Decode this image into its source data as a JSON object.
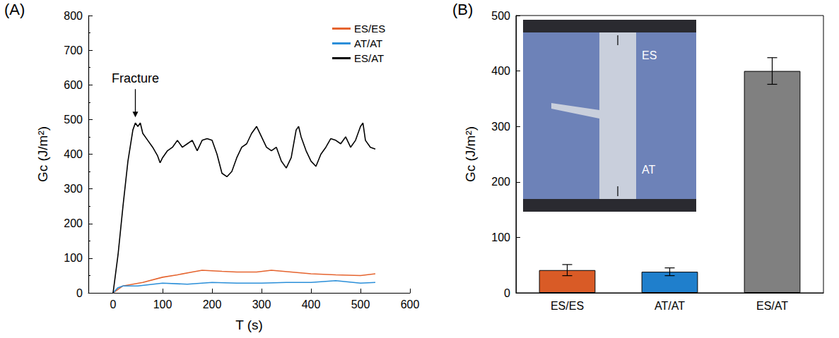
{
  "chart_data": [
    {
      "type": "line",
      "panel": "(A)",
      "x_label": "T (s)",
      "y_label": "Gc (J/m²)",
      "xlim": [
        -50,
        600
      ],
      "xticks": [
        0,
        100,
        200,
        300,
        400,
        500,
        600
      ],
      "ylim": [
        0,
        800
      ],
      "yticks": [
        0,
        100,
        200,
        300,
        400,
        500,
        600,
        700,
        800
      ],
      "grid": false,
      "legend": "upper right",
      "annotations": [
        {
          "text": "Fracture",
          "x": 45,
          "y": 490
        }
      ],
      "series": [
        {
          "name": "ES/ES",
          "color": "#e5642f",
          "x": [
            0,
            20,
            60,
            100,
            130,
            160,
            180,
            220,
            250,
            290,
            320,
            360,
            400,
            450,
            500,
            530
          ],
          "values": [
            0,
            20,
            30,
            45,
            52,
            60,
            65,
            62,
            60,
            60,
            65,
            60,
            55,
            52,
            50,
            55
          ]
        },
        {
          "name": "AT/AT",
          "color": "#2b8fd9",
          "x": [
            0,
            10,
            20,
            50,
            100,
            150,
            200,
            250,
            300,
            350,
            400,
            450,
            500,
            530
          ],
          "values": [
            0,
            15,
            20,
            20,
            28,
            25,
            30,
            28,
            28,
            30,
            30,
            35,
            28,
            30
          ]
        },
        {
          "name": "ES/AT",
          "color": "#000000",
          "x": [
            0,
            10,
            20,
            30,
            40,
            45,
            50,
            55,
            60,
            70,
            80,
            90,
            95,
            100,
            110,
            120,
            130,
            140,
            150,
            160,
            170,
            180,
            190,
            200,
            210,
            220,
            230,
            240,
            250,
            260,
            270,
            280,
            290,
            300,
            310,
            320,
            330,
            340,
            350,
            360,
            370,
            375,
            380,
            390,
            400,
            410,
            420,
            430,
            440,
            450,
            460,
            470,
            480,
            490,
            500,
            505,
            510,
            520,
            530
          ],
          "values": [
            0,
            110,
            250,
            380,
            470,
            490,
            480,
            490,
            460,
            440,
            420,
            395,
            375,
            390,
            410,
            420,
            440,
            420,
            430,
            440,
            410,
            440,
            445,
            440,
            400,
            345,
            335,
            350,
            390,
            420,
            430,
            460,
            480,
            450,
            420,
            410,
            420,
            380,
            360,
            390,
            470,
            480,
            450,
            410,
            380,
            365,
            400,
            420,
            445,
            440,
            430,
            450,
            420,
            440,
            480,
            490,
            440,
            420,
            415
          ]
        }
      ]
    },
    {
      "type": "bar",
      "panel": "(B)",
      "y_label": "Gc (J/m²)",
      "categories": [
        "ES/ES",
        "AT/AT",
        "ES/AT"
      ],
      "values": [
        41,
        38,
        400
      ],
      "errors": [
        10,
        7,
        24
      ],
      "colors": [
        "#d95b26",
        "#1f7fcc",
        "#808080"
      ],
      "ylim": [
        0,
        500
      ],
      "yticks": [
        0,
        100,
        200,
        300,
        400,
        500
      ],
      "grid": false,
      "annotations": [
        {
          "text": "ES"
        },
        {
          "text": "AT"
        }
      ]
    }
  ]
}
